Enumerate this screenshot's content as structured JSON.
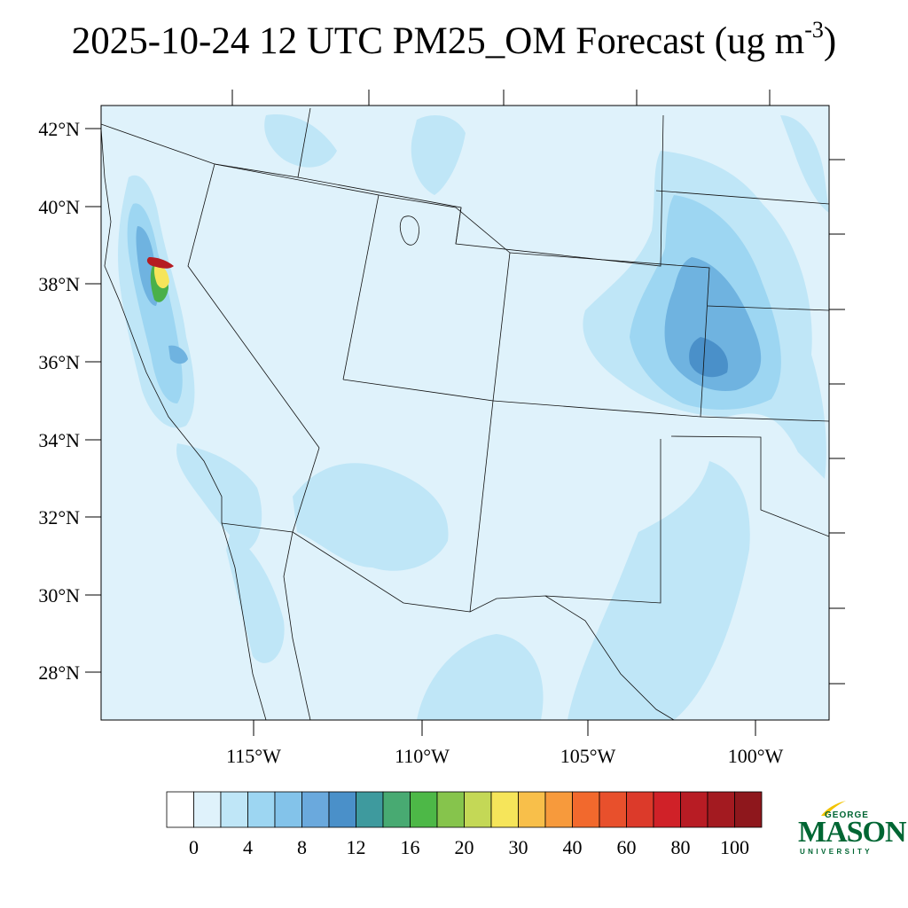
{
  "title": {
    "main": "2025-10-24 12 UTC PM25_OM Forecast (ug m",
    "superscript": "-3",
    "close": ")"
  },
  "map": {
    "lat_labels": [
      "42°N",
      "40°N",
      "38°N",
      "36°N",
      "34°N",
      "32°N",
      "30°N",
      "28°N"
    ],
    "lon_labels": [
      "115°W",
      "110°W",
      "105°W",
      "100°W"
    ],
    "colors": {
      "background": "#dff2fb",
      "light": "#bfe6f7",
      "medium": "#9dd6f2",
      "dark": "#6fb3e0",
      "darker": "#4a90c9",
      "teal": "#3e9a9e",
      "green": "#4ab04a",
      "yellow": "#f6e55a",
      "red": "#b51c22"
    }
  },
  "colorbar": {
    "labels": [
      "0",
      "4",
      "8",
      "12",
      "16",
      "20",
      "30",
      "40",
      "60",
      "80",
      "100"
    ],
    "colors": [
      "#ffffff",
      "#dff2fb",
      "#bfe6f7",
      "#9dd6f2",
      "#83c3ea",
      "#6aa9dd",
      "#4a90c9",
      "#3e9a9e",
      "#48aa72",
      "#4db847",
      "#86c44c",
      "#c4d856",
      "#f6e55a",
      "#f8bf4a",
      "#f79a3c",
      "#f2692d",
      "#e8502c",
      "#dc3a2a",
      "#d02128",
      "#b81c24",
      "#a31a20",
      "#8e171c"
    ]
  },
  "logo": {
    "top": "GEORGE",
    "main": "MASON",
    "bottom": "UNIVERSITY",
    "color": "#006633",
    "accent": "#f2c300"
  }
}
